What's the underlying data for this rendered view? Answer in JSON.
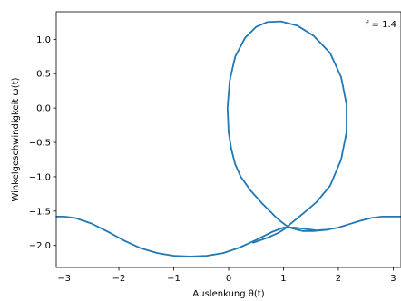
{
  "chart_data": {
    "type": "line",
    "title": "",
    "xlabel": "Auslenkung θ(t)",
    "ylabel": "Winkelgeschwindigkeit ω(t)",
    "xlim": [
      -3.1416,
      3.1416
    ],
    "ylim": [
      -2.32,
      1.4
    ],
    "grid": false,
    "annotation": "f = 1.4",
    "x_ticks": [
      -3,
      -2,
      -1,
      0,
      1,
      2,
      3
    ],
    "x_tick_labels": [
      "−3",
      "−2",
      "−1",
      "0",
      "1",
      "2",
      "3"
    ],
    "y_ticks": [
      1.0,
      0.5,
      0.0,
      -0.5,
      -1.0,
      -1.5,
      -2.0
    ],
    "y_tick_labels": [
      "1.0",
      "0.5",
      "0.0",
      "−0.5",
      "−1.0",
      "−1.5",
      "−2.0"
    ],
    "series": [
      {
        "color": "#1f77b4",
        "x": [
          -3.14,
          -3.0,
          -2.8,
          -2.5,
          -2.2,
          -1.9,
          -1.6,
          -1.3,
          -1.0,
          -0.7,
          -0.4,
          -0.1,
          0.2,
          0.5,
          0.8,
          1.0,
          1.2,
          1.4,
          1.6,
          1.8,
          2.0,
          2.2,
          2.4,
          2.6,
          2.8,
          3.0,
          3.14
        ],
        "y": [
          -1.58,
          -1.58,
          -1.6,
          -1.68,
          -1.8,
          -1.93,
          -2.04,
          -2.11,
          -2.15,
          -2.16,
          -2.15,
          -2.11,
          -2.03,
          -1.92,
          -1.8,
          -1.74,
          -1.74,
          -1.76,
          -1.78,
          -1.77,
          -1.74,
          -1.69,
          -1.64,
          -1.6,
          -1.58,
          -1.58,
          -1.58
        ]
      },
      {
        "color": "#1f77b4",
        "x": [
          0.45,
          0.7,
          0.9,
          1.0,
          1.05,
          1.15,
          1.35,
          1.6,
          1.85,
          2.05,
          2.15,
          2.15,
          2.05,
          1.85,
          1.55,
          1.25,
          0.95,
          0.7,
          0.5,
          0.3,
          0.12,
          0.02,
          -0.02,
          0.0,
          0.05,
          0.12,
          0.22,
          0.4,
          0.6,
          0.75,
          0.85,
          0.95,
          1.05,
          1.15,
          1.35,
          1.55,
          1.8
        ],
        "y": [
          -1.96,
          -1.89,
          -1.82,
          -1.77,
          -1.74,
          -1.67,
          -1.54,
          -1.37,
          -1.13,
          -0.75,
          -0.35,
          0.05,
          0.45,
          0.8,
          1.05,
          1.2,
          1.26,
          1.25,
          1.18,
          1.02,
          0.75,
          0.4,
          0.0,
          -0.35,
          -0.6,
          -0.82,
          -1.0,
          -1.2,
          -1.38,
          -1.5,
          -1.58,
          -1.65,
          -1.71,
          -1.75,
          -1.79,
          -1.79,
          -1.77
        ]
      }
    ]
  }
}
